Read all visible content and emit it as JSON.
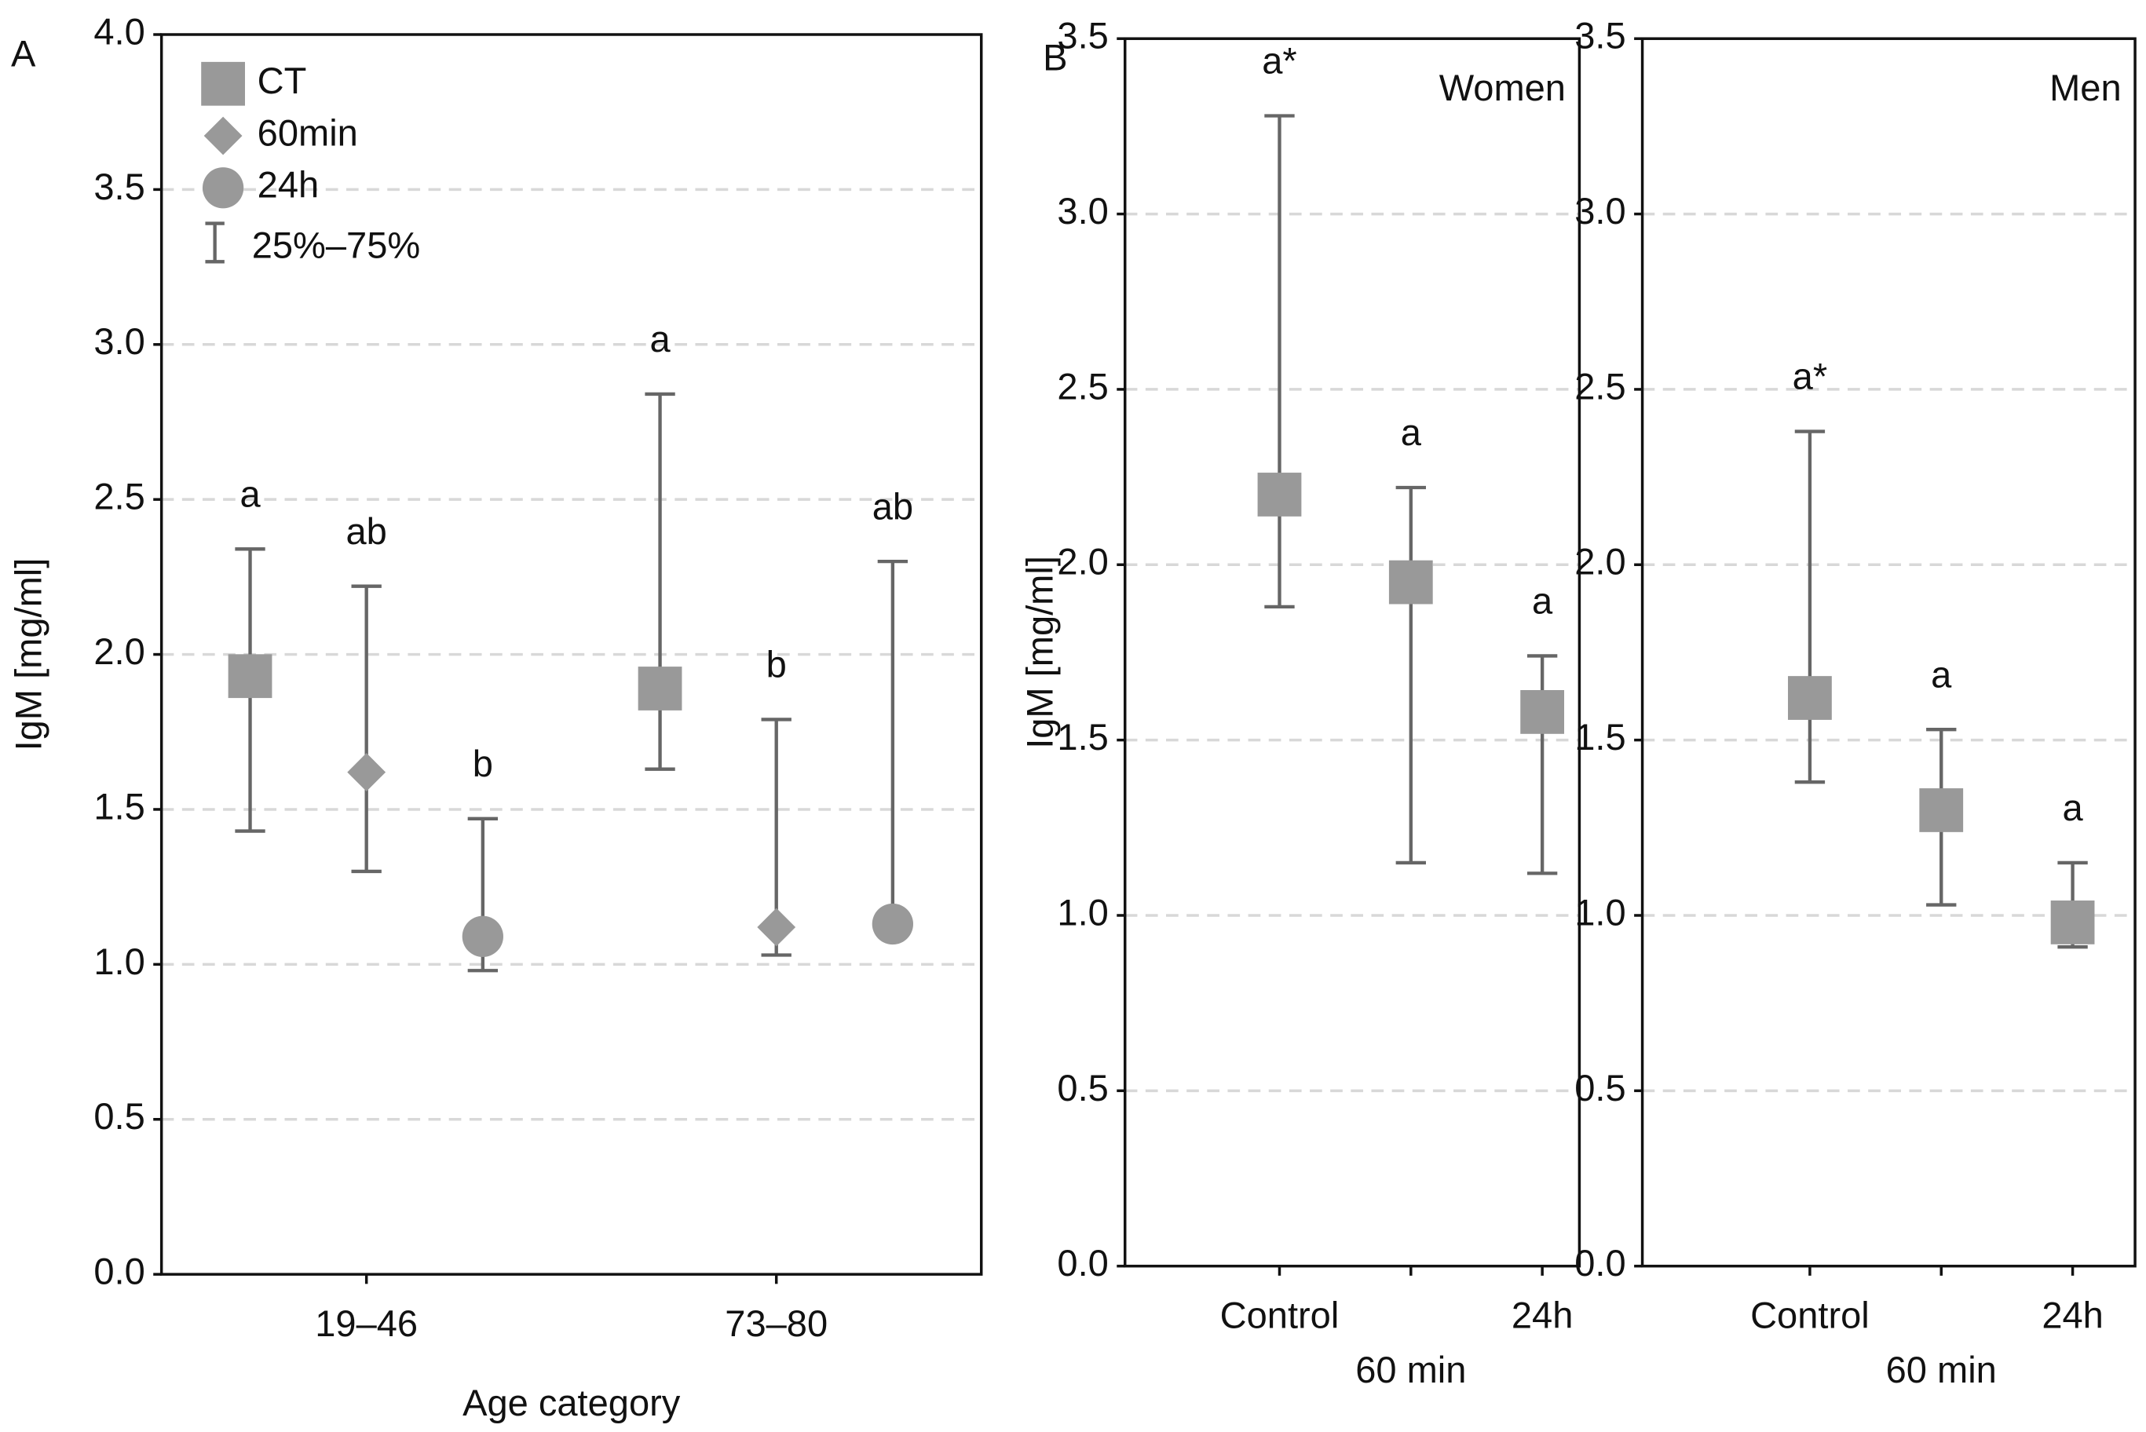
{
  "chart_data": [
    {
      "type": "errorbar",
      "panel_label": "A",
      "ylabel": "IgM [mg/ml]",
      "xlabel": "Age category",
      "categories": [
        "19–46",
        "73–80"
      ],
      "ylim": [
        0,
        4
      ],
      "yticks": [
        {
          "value": 0,
          "label": "0.0"
        },
        {
          "value": 0.5,
          "label": "0.5"
        },
        {
          "value": 1,
          "label": "1.0"
        },
        {
          "value": 1.5,
          "label": "1.5"
        },
        {
          "value": 2,
          "label": "2.0"
        },
        {
          "value": 2.5,
          "label": "2.5"
        },
        {
          "value": 3,
          "label": "3.0"
        },
        {
          "value": 3.5,
          "label": "3.5"
        },
        {
          "value": 4,
          "label": "4.0"
        }
      ],
      "grid": true,
      "legend": "top-left",
      "legend_errorbar": "25%–75%",
      "series": [
        {
          "name": "CT",
          "marker": "square",
          "color": "#999999",
          "values": [
            1.93,
            1.89
          ],
          "low": [
            1.43,
            1.63
          ],
          "high": [
            2.34,
            2.84
          ],
          "value_labels": [
            "a",
            "a"
          ]
        },
        {
          "name": "60min",
          "marker": "diamond",
          "color": "#999999",
          "values": [
            1.62,
            1.12
          ],
          "low": [
            1.3,
            1.03
          ],
          "high": [
            2.22,
            1.79
          ],
          "value_labels": [
            "ab",
            "b"
          ]
        },
        {
          "name": "24h",
          "marker": "circle",
          "color": "#999999",
          "values": [
            1.09,
            1.13
          ],
          "low": [
            0.98,
            1.1
          ],
          "high": [
            1.47,
            2.3
          ],
          "value_labels": [
            "b",
            "ab"
          ]
        }
      ]
    },
    {
      "type": "errorbar",
      "panel_label": "B",
      "ylabel": "IgM [mg/ml]",
      "annotation": "Women",
      "categories": [
        "Control",
        "60 min",
        "24h"
      ],
      "ylim": [
        0,
        3.5
      ],
      "yticks": [
        {
          "value": 0,
          "label": "0.0"
        },
        {
          "value": 0.5,
          "label": "0.5"
        },
        {
          "value": 1,
          "label": "1.0"
        },
        {
          "value": 1.5,
          "label": "1.5"
        },
        {
          "value": 2,
          "label": "2.0"
        },
        {
          "value": 2.5,
          "label": "2.5"
        },
        {
          "value": 3,
          "label": "3.0"
        },
        {
          "value": 3.5,
          "label": "3.5"
        }
      ],
      "grid": true,
      "series": [
        {
          "marker": "square",
          "color": "#999999",
          "values": [
            2.2,
            1.95,
            1.58
          ],
          "low": [
            1.88,
            1.15,
            1.12
          ],
          "high": [
            3.28,
            2.22,
            1.74
          ],
          "value_labels": [
            "a*",
            "a",
            "a"
          ]
        }
      ]
    },
    {
      "type": "errorbar",
      "annotation": "Men",
      "categories": [
        "Control",
        "60 min",
        "24h"
      ],
      "ylim": [
        0,
        3.5
      ],
      "yticks": [
        {
          "value": 0,
          "label": "0.0"
        },
        {
          "value": 0.5,
          "label": "0.5"
        },
        {
          "value": 1,
          "label": "1.0"
        },
        {
          "value": 1.5,
          "label": "1.5"
        },
        {
          "value": 2,
          "label": "2.0"
        },
        {
          "value": 2.5,
          "label": "2.5"
        },
        {
          "value": 3,
          "label": "3.0"
        },
        {
          "value": 3.5,
          "label": "3.5"
        }
      ],
      "grid": true,
      "series": [
        {
          "marker": "square",
          "color": "#999999",
          "values": [
            1.62,
            1.3,
            0.98
          ],
          "low": [
            1.38,
            1.03,
            0.91
          ],
          "high": [
            2.38,
            1.53,
            1.15
          ],
          "value_labels": [
            "a*",
            "a",
            "a"
          ]
        }
      ]
    }
  ]
}
